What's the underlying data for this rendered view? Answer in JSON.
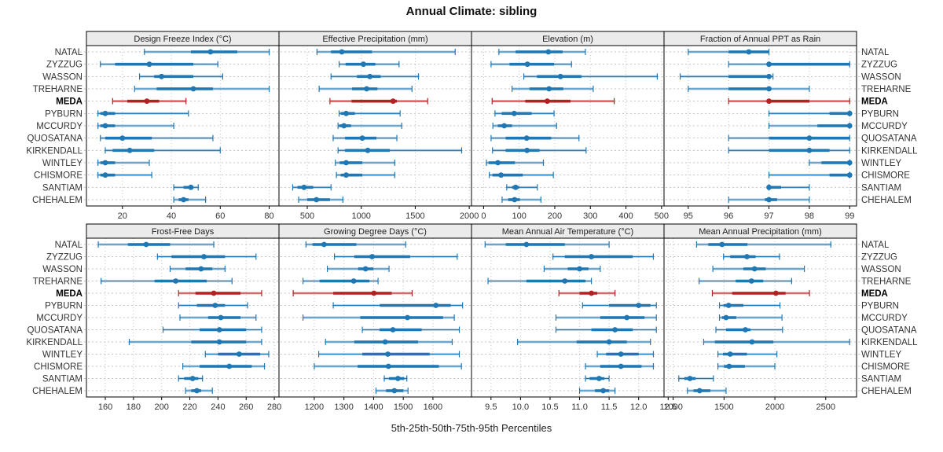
{
  "title": "Annual Climate: sibling",
  "footer": "5th-25th-50th-75th-95th Percentiles",
  "chart_data": {
    "type": "trellis-percentile-whisker",
    "title": "Annual Climate: sibling",
    "xlabel": "5th-25th-50th-75th-95th Percentiles",
    "legend_position": "none",
    "grid": "dotted",
    "percentile_labels": [
      "5th",
      "25th",
      "50th",
      "75th",
      "95th"
    ],
    "sites": [
      "NATAL",
      "ZYZZUG",
      "WASSON",
      "TREHARNE",
      "MEDA",
      "PYBURN",
      "MCCURDY",
      "QUOSATANA",
      "KIRKENDALL",
      "WINTLEY",
      "CHISMORE",
      "SANTIAM",
      "CHEHALEM"
    ],
    "highlight_site": "MEDA",
    "colors": {
      "series": "#1f77b4",
      "highlight": "#b22222",
      "strip_bg": "#ebebeb",
      "panel_bg": "#ffffff",
      "border": "#000000",
      "grid": "#c4c4c4",
      "label": "#333333"
    },
    "panels": [
      {
        "slug": "design-freeze-index",
        "title": "Design Freeze Index (°C)",
        "row": 0,
        "col": 0,
        "xlim": [
          5.3,
          84
        ],
        "tick_values": [
          20,
          40,
          60,
          80
        ],
        "tick_labels": [
          "20",
          "40",
          "60",
          "80"
        ],
        "values": [
          [
            29,
            48,
            56,
            67,
            80
          ],
          [
            11,
            17,
            31,
            49,
            59
          ],
          [
            27,
            33,
            36,
            49,
            61
          ],
          [
            25,
            34,
            49,
            57,
            80
          ],
          [
            16,
            22,
            30,
            35,
            46
          ],
          [
            10,
            11,
            13,
            17,
            47
          ],
          [
            10,
            11,
            13,
            17,
            41
          ],
          [
            11,
            13,
            20,
            32,
            57
          ],
          [
            13,
            16,
            23,
            33,
            60
          ],
          [
            10,
            11,
            13,
            17,
            31
          ],
          [
            10,
            11,
            13,
            17,
            32
          ],
          [
            41,
            45,
            48,
            49,
            51
          ],
          [
            41,
            43,
            45,
            47,
            54
          ]
        ]
      },
      {
        "slug": "effective-precipitation",
        "title": "Effective Precipitation (mm)",
        "row": 0,
        "col": 1,
        "xlim": [
          238,
          2021
        ],
        "tick_values": [
          500,
          1000,
          1500,
          2000
        ],
        "tick_labels": [
          "500",
          "1000",
          "1500",
          "2000"
        ],
        "values": [
          [
            590,
            720,
            820,
            1100,
            1870
          ],
          [
            795,
            855,
            1020,
            1130,
            1350
          ],
          [
            720,
            960,
            1080,
            1180,
            1530
          ],
          [
            610,
            915,
            1050,
            1150,
            1470
          ],
          [
            710,
            910,
            1295,
            1330,
            1615
          ],
          [
            795,
            810,
            860,
            940,
            1360
          ],
          [
            785,
            795,
            840,
            905,
            1375
          ],
          [
            740,
            850,
            1010,
            1140,
            1330
          ],
          [
            785,
            850,
            1060,
            1265,
            1930
          ],
          [
            760,
            800,
            860,
            1010,
            1310
          ],
          [
            770,
            810,
            860,
            1010,
            1310
          ],
          [
            365,
            410,
            470,
            555,
            720
          ],
          [
            420,
            500,
            585,
            710,
            830
          ]
        ]
      },
      {
        "slug": "elevation",
        "title": "Elevation (m)",
        "row": 0,
        "col": 2,
        "xlim": [
          -34,
          507
        ],
        "tick_values": [
          0,
          100,
          200,
          300,
          400,
          500
        ],
        "tick_labels": [
          "0",
          "100",
          "200",
          "300",
          "400",
          "500"
        ],
        "values": [
          [
            43,
            90,
            182,
            222,
            286
          ],
          [
            21,
            73,
            123,
            198,
            247
          ],
          [
            113,
            150,
            216,
            275,
            488
          ],
          [
            80,
            129,
            184,
            224,
            308
          ],
          [
            24,
            117,
            179,
            244,
            367
          ],
          [
            32,
            51,
            86,
            135,
            198
          ],
          [
            26,
            40,
            58,
            80,
            205
          ],
          [
            21,
            62,
            121,
            190,
            268
          ],
          [
            25,
            62,
            122,
            157,
            288
          ],
          [
            8,
            14,
            40,
            88,
            168
          ],
          [
            16,
            25,
            49,
            110,
            196
          ],
          [
            65,
            80,
            90,
            100,
            151
          ],
          [
            52,
            69,
            87,
            102,
            161
          ]
        ]
      },
      {
        "slug": "fraction-ppt-as-rain",
        "title": "Fraction of Annual PPT as Rain",
        "row": 0,
        "col": 3,
        "xlim": [
          94.4,
          99.17
        ],
        "tick_values": [
          95,
          96,
          97,
          98,
          99
        ],
        "tick_labels": [
          "95",
          "96",
          "97",
          "98",
          "99"
        ],
        "values": [
          [
            95,
            96,
            96.5,
            97,
            97
          ],
          [
            96,
            97,
            97,
            99,
            99
          ],
          [
            94.8,
            96,
            97,
            97,
            97.1
          ],
          [
            95,
            96,
            97,
            97,
            98
          ],
          [
            96,
            97,
            97,
            98,
            99
          ],
          [
            97,
            98.5,
            99,
            99,
            99
          ],
          [
            97,
            98.2,
            99,
            99,
            99
          ],
          [
            96,
            97,
            98,
            99,
            99
          ],
          [
            96,
            97,
            98,
            98.5,
            99
          ],
          [
            98,
            98.3,
            99,
            99,
            99
          ],
          [
            97,
            98.5,
            99,
            99,
            99
          ],
          [
            97,
            97,
            97,
            97.3,
            98
          ],
          [
            96,
            96.9,
            97,
            97.2,
            98
          ]
        ]
      },
      {
        "slug": "frost-free-days",
        "title": "Frost-Free Days",
        "row": 1,
        "col": 0,
        "xlim": [
          146.6,
          283.3
        ],
        "tick_values": [
          160,
          180,
          200,
          220,
          240,
          260,
          280
        ],
        "tick_labels": [
          "160",
          "180",
          "200",
          "220",
          "240",
          "260",
          "280"
        ],
        "values": [
          [
            155,
            176,
            189,
            206,
            237
          ],
          [
            197,
            207,
            230,
            245,
            267
          ],
          [
            206,
            217,
            228,
            236,
            245
          ],
          [
            157,
            195,
            210,
            232,
            250
          ],
          [
            212,
            224,
            237,
            256,
            271
          ],
          [
            212,
            225,
            238,
            245,
            261
          ],
          [
            213,
            233,
            242,
            256,
            267
          ],
          [
            201,
            227,
            241,
            260,
            271
          ],
          [
            177,
            221,
            241,
            260,
            271
          ],
          [
            231,
            240,
            255,
            270,
            276
          ],
          [
            215,
            227,
            248,
            264,
            273
          ],
          [
            212,
            216,
            222,
            226,
            229
          ],
          [
            217,
            221,
            225,
            228,
            236
          ]
        ]
      },
      {
        "slug": "growing-degree-days",
        "title": "Growing Degree Days (°C)",
        "row": 1,
        "col": 1,
        "xlim": [
          1081,
          1730
        ],
        "tick_values": [
          1200,
          1300,
          1400,
          1500,
          1600
        ],
        "tick_labels": [
          "1200",
          "1300",
          "1400",
          "1500",
          "1600"
        ],
        "values": [
          [
            1172,
            1194,
            1233,
            1342,
            1508
          ],
          [
            1268,
            1335,
            1395,
            1523,
            1682
          ],
          [
            1244,
            1348,
            1373,
            1399,
            1452
          ],
          [
            1162,
            1218,
            1333,
            1386,
            1415
          ],
          [
            1129,
            1264,
            1401,
            1461,
            1530
          ],
          [
            1264,
            1421,
            1610,
            1660,
            1700
          ],
          [
            1162,
            1355,
            1514,
            1634,
            1672
          ],
          [
            1362,
            1420,
            1465,
            1562,
            1689
          ],
          [
            1238,
            1335,
            1439,
            1550,
            1665
          ],
          [
            1215,
            1362,
            1448,
            1589,
            1689
          ],
          [
            1200,
            1346,
            1450,
            1620,
            1696
          ],
          [
            1436,
            1452,
            1482,
            1503,
            1512
          ],
          [
            1408,
            1442,
            1470,
            1500,
            1516
          ]
        ]
      },
      {
        "slug": "mean-annual-air-temperature",
        "title": "Mean Annual Air Temperature (°C)",
        "row": 1,
        "col": 2,
        "xlim": [
          9.17,
          12.43
        ],
        "tick_values": [
          9.5,
          10.0,
          10.5,
          11.0,
          11.5,
          12.0,
          12.5
        ],
        "tick_labels": [
          "9.5",
          "10.0",
          "10.5",
          "11.0",
          "11.5",
          "12.0",
          "12.5"
        ],
        "values": [
          [
            9.4,
            9.75,
            10.1,
            10.75,
            11.5
          ],
          [
            10.55,
            10.75,
            11.2,
            11.9,
            12.25
          ],
          [
            10.4,
            10.8,
            11.0,
            11.15,
            11.35
          ],
          [
            9.45,
            10.1,
            10.75,
            11.1,
            11.2
          ],
          [
            10.65,
            11.0,
            11.2,
            11.3,
            11.6
          ],
          [
            11.05,
            11.5,
            12.0,
            12.2,
            12.3
          ],
          [
            10.6,
            11.35,
            11.8,
            12.1,
            12.3
          ],
          [
            10.6,
            11.2,
            11.6,
            11.9,
            12.3
          ],
          [
            9.95,
            10.95,
            11.5,
            11.8,
            12.2
          ],
          [
            11.3,
            11.45,
            11.7,
            12.0,
            12.25
          ],
          [
            11.1,
            11.35,
            11.7,
            12.05,
            12.25
          ],
          [
            11.1,
            11.17,
            11.33,
            11.42,
            11.5
          ],
          [
            11.0,
            11.26,
            11.4,
            11.5,
            11.6
          ]
        ]
      },
      {
        "slug": "mean-annual-precipitation",
        "title": "Mean Annual Precipitation (mm)",
        "row": 1,
        "col": 3,
        "xlim": [
          910,
          2803
        ],
        "tick_values": [
          1000,
          1500,
          2000,
          2500
        ],
        "tick_labels": [
          "1000",
          "1500",
          "2000",
          "2500"
        ],
        "values": [
          [
            1230,
            1345,
            1480,
            1730,
            2550
          ],
          [
            1495,
            1560,
            1725,
            1810,
            2045
          ],
          [
            1390,
            1690,
            1800,
            1910,
            2290
          ],
          [
            1255,
            1615,
            1770,
            1885,
            2165
          ],
          [
            1385,
            1580,
            2010,
            2105,
            2340
          ],
          [
            1455,
            1495,
            1545,
            1690,
            2050
          ],
          [
            1455,
            1480,
            1520,
            1620,
            2070
          ],
          [
            1420,
            1520,
            1710,
            1760,
            2075
          ],
          [
            1300,
            1410,
            1775,
            1985,
            2735
          ],
          [
            1440,
            1490,
            1560,
            1725,
            2020
          ],
          [
            1440,
            1500,
            1550,
            1705,
            2000
          ],
          [
            1055,
            1110,
            1165,
            1220,
            1395
          ],
          [
            1140,
            1200,
            1260,
            1365,
            1520
          ]
        ]
      }
    ]
  }
}
